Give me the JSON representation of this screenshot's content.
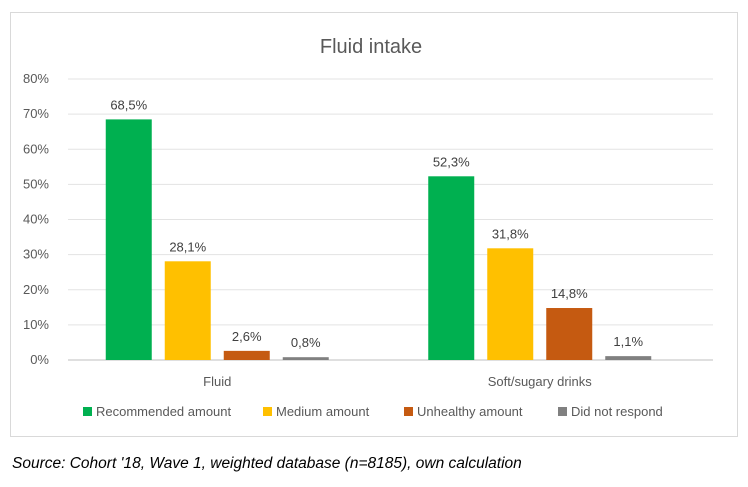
{
  "source_note": "Source: Cohort '18, Wave 1, weighted database (n=8185), own calculation",
  "chart_data": {
    "type": "bar",
    "title": "Fluid intake",
    "xlabel": "",
    "ylabel": "",
    "categories": [
      "Fluid",
      "Soft/sugary drinks"
    ],
    "ylim": [
      0,
      80
    ],
    "yticks": [
      "0%",
      "10%",
      "20%",
      "30%",
      "40%",
      "50%",
      "60%",
      "70%",
      "80%"
    ],
    "grid": true,
    "legend_position": "bottom",
    "series": [
      {
        "name": "Recommended amount",
        "color": "#00b050",
        "values": [
          68.5,
          52.3
        ],
        "labels": [
          "68,5%",
          "52,3%"
        ]
      },
      {
        "name": "Medium amount",
        "color": "#ffc000",
        "values": [
          28.1,
          31.8
        ],
        "labels": [
          "28,1%",
          "31,8%"
        ]
      },
      {
        "name": "Unhealthy amount",
        "color": "#c55a11",
        "values": [
          2.6,
          14.8
        ],
        "labels": [
          "2,6%",
          "14,8%"
        ]
      },
      {
        "name": "Did not respond",
        "color": "#808080",
        "values": [
          0.8,
          1.1
        ],
        "labels": [
          "0,8%",
          "1,1%"
        ]
      }
    ]
  }
}
